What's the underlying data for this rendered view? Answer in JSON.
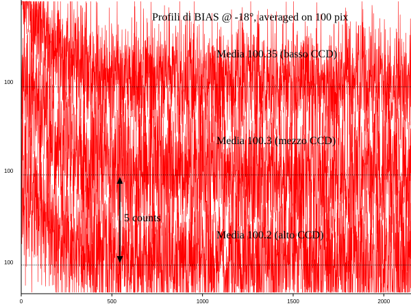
{
  "chart_data": {
    "type": "line",
    "title": "Profili di BIAS @ -18°, averaged on 100 pix",
    "xlabel": "",
    "ylabel": "",
    "xlim": [
      0,
      2150
    ],
    "x_ticks": [
      "0",
      "500",
      "1000",
      "1500",
      "2000"
    ],
    "x_tick_values": [
      0,
      500,
      1000,
      1500,
      2000
    ],
    "line_color": "#ff0000",
    "baseline_value": 100,
    "grid": false,
    "series": [
      {
        "name": "Media 100.35 (basso CCD)",
        "baseline_label": "100",
        "mean": 100.35,
        "start_level": 106,
        "decay_len": 180,
        "noise_amp": 1.8
      },
      {
        "name": "Media 100.3 (mezzo CCD)",
        "baseline_label": "100",
        "mean": 100.3,
        "start_level": 106,
        "decay_len": 160,
        "noise_amp": 2.3
      },
      {
        "name": "Media 100.2 (alto CCD)",
        "baseline_label": "100",
        "mean": 100.2,
        "start_level": 105,
        "decay_len": 160,
        "noise_amp": 2.2
      }
    ],
    "annotation": {
      "text": "5 counts",
      "x": 545,
      "counts": 5
    }
  }
}
